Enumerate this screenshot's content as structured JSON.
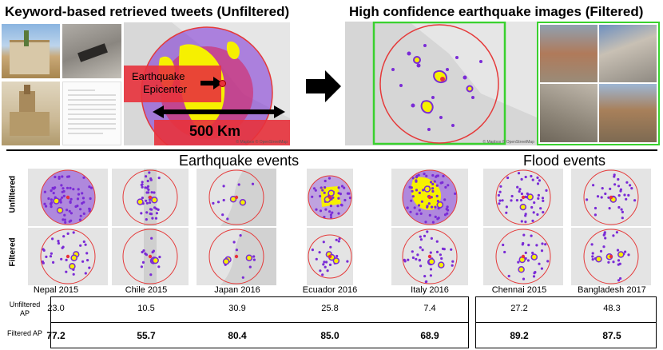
{
  "top": {
    "left_title": "Keyword-based retrieved tweets (Unfiltered)",
    "right_title": "High confidence earthquake images (Filtered)",
    "epicenter_label_line1": "Earthquake",
    "epicenter_label_line2": "Epicenter",
    "distance_label": "500 Km",
    "map_credit": "© Mapbox © OpenStreetMap"
  },
  "sections": {
    "earthquake_title": "Earthquake events",
    "flood_title": "Flood events"
  },
  "row_labels": {
    "unfiltered": "Unfiltered",
    "filtered": "Filtered"
  },
  "events": [
    {
      "name": "Nepal 2015",
      "unfiltered_ap": "23.0",
      "filtered_ap": "77.2"
    },
    {
      "name": "Chile 2015",
      "unfiltered_ap": "10.5",
      "filtered_ap": "55.7"
    },
    {
      "name": "Japan 2016",
      "unfiltered_ap": "30.9",
      "filtered_ap": "80.4"
    },
    {
      "name": "Ecuador 2016",
      "unfiltered_ap": "25.8",
      "filtered_ap": "85.0"
    },
    {
      "name": "Italy 2016",
      "unfiltered_ap": "7.4",
      "filtered_ap": "68.9"
    },
    {
      "name": "Chennai 2015",
      "unfiltered_ap": "27.2",
      "filtered_ap": "89.2"
    },
    {
      "name": "Bangladesh 2017",
      "unfiltered_ap": "48.3",
      "filtered_ap": "87.5"
    }
  ],
  "metrics": {
    "unfiltered_line1": "Unfiltered",
    "unfiltered_line2": "AP",
    "filtered": "Filtered AP"
  },
  "colors": {
    "heat_yellow": "#f6f000",
    "heat_red": "#e8323c",
    "dot_purple": "#7a2bd6",
    "circle_red": "#e53a3a",
    "frame_green": "#39d12e"
  }
}
